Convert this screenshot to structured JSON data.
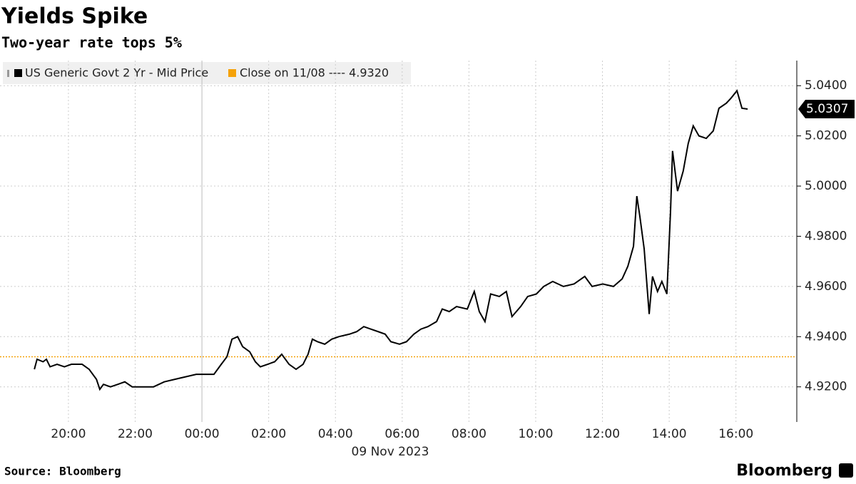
{
  "chart_data": {
    "type": "line",
    "title": "Yields Spike",
    "subtitle": "Two-year rate tops 5%",
    "xlabel": "09 Nov 2023",
    "source": "Source: Bloomberg",
    "brand": "Bloomberg",
    "xlim": [
      -6.05,
      17.78
    ],
    "xticks": [
      {
        "value": -4,
        "label": "20:00"
      },
      {
        "value": -2,
        "label": "22:00"
      },
      {
        "value": 0,
        "label": "00:00"
      },
      {
        "value": 2,
        "label": "02:00"
      },
      {
        "value": 4,
        "label": "04:00"
      },
      {
        "value": 6,
        "label": "06:00"
      },
      {
        "value": 8,
        "label": "08:00"
      },
      {
        "value": 10,
        "label": "10:00"
      },
      {
        "value": 12,
        "label": "12:00"
      },
      {
        "value": 14,
        "label": "14:00"
      },
      {
        "value": 16,
        "label": "16:00"
      }
    ],
    "ylim": [
      4.906,
      5.05
    ],
    "yticks": [
      {
        "value": 4.92,
        "label": "4.9200"
      },
      {
        "value": 4.94,
        "label": "4.9400"
      },
      {
        "value": 4.96,
        "label": "4.9600"
      },
      {
        "value": 4.98,
        "label": "4.9800"
      },
      {
        "value": 5.0,
        "label": "5.0000"
      },
      {
        "value": 5.02,
        "label": "5.0200"
      },
      {
        "value": 5.04,
        "label": "5.0400"
      }
    ],
    "grid": true,
    "series": [
      {
        "name": "US Generic Govt 2 Yr - Mid Price",
        "color": "#000000",
        "x": [
          -5.02,
          -4.94,
          -4.76,
          -4.66,
          -4.55,
          -4.34,
          -4.12,
          -3.91,
          -3.59,
          -3.38,
          -3.16,
          -3.06,
          -2.95,
          -2.74,
          -2.52,
          -2.31,
          -2.09,
          -1.77,
          -1.45,
          -1.13,
          -0.81,
          -0.49,
          -0.17,
          0.15,
          0.36,
          0.58,
          0.75,
          0.9,
          1.07,
          1.22,
          1.43,
          1.6,
          1.75,
          1.97,
          2.18,
          2.39,
          2.61,
          2.82,
          3.03,
          3.18,
          3.31,
          3.46,
          3.68,
          3.89,
          4.1,
          4.42,
          4.64,
          4.85,
          5.06,
          5.28,
          5.49,
          5.66,
          5.92,
          6.13,
          6.35,
          6.56,
          6.77,
          7.03,
          7.2,
          7.41,
          7.63,
          7.95,
          8.16,
          8.31,
          8.48,
          8.65,
          8.91,
          9.12,
          9.29,
          9.55,
          9.76,
          10.02,
          10.24,
          10.51,
          10.83,
          11.15,
          11.47,
          11.69,
          12.01,
          12.33,
          12.59,
          12.76,
          12.93,
          13.03,
          13.12,
          13.25,
          13.4,
          13.5,
          13.65,
          13.78,
          13.93,
          14.04,
          14.1,
          14.25,
          14.42,
          14.57,
          14.72,
          14.89,
          15.11,
          15.32,
          15.49,
          15.71,
          15.85,
          16.03,
          16.18,
          16.35
        ],
        "values": [
          4.927,
          4.931,
          4.93,
          4.931,
          4.928,
          4.929,
          4.928,
          4.929,
          4.929,
          4.927,
          4.923,
          4.919,
          4.921,
          4.92,
          4.921,
          4.922,
          4.92,
          4.92,
          4.92,
          4.922,
          4.923,
          4.924,
          4.925,
          4.925,
          4.925,
          4.929,
          4.932,
          4.939,
          4.94,
          4.936,
          4.934,
          4.93,
          4.928,
          4.929,
          4.93,
          4.933,
          4.929,
          4.927,
          4.929,
          4.933,
          4.939,
          4.938,
          4.937,
          4.939,
          4.94,
          4.941,
          4.942,
          4.944,
          4.943,
          4.942,
          4.941,
          4.938,
          4.937,
          4.938,
          4.941,
          4.943,
          4.944,
          4.946,
          4.951,
          4.95,
          4.952,
          4.951,
          4.958,
          4.95,
          4.946,
          4.957,
          4.956,
          4.958,
          4.948,
          4.952,
          4.956,
          4.957,
          4.96,
          4.962,
          4.96,
          4.961,
          4.964,
          4.96,
          4.961,
          4.96,
          4.963,
          4.968,
          4.976,
          4.996,
          4.988,
          4.975,
          4.949,
          4.964,
          4.958,
          4.962,
          4.957,
          4.99,
          5.014,
          4.998,
          5.006,
          5.017,
          5.024,
          5.02,
          5.019,
          5.022,
          5.031,
          5.033,
          5.035,
          5.038,
          5.031,
          5.0307
        ]
      }
    ],
    "reference_line": {
      "name": "Close on 11/08 ---- 4.9320",
      "color": "#f5a20a",
      "value": 4.932
    }
  }
}
